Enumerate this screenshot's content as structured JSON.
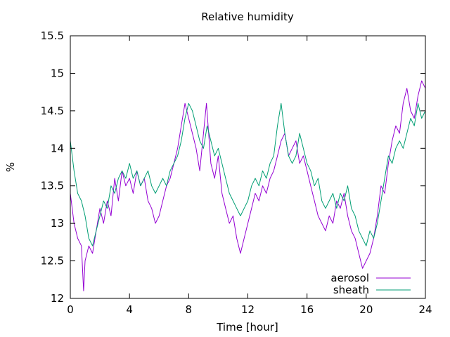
{
  "chart_data": {
    "type": "line",
    "title": "Relative humidity",
    "xlabel": "Time [hour]",
    "ylabel": "%",
    "xlim": [
      0,
      24
    ],
    "ylim": [
      12,
      15.5
    ],
    "xticks": [
      0,
      4,
      8,
      12,
      16,
      20,
      24
    ],
    "yticks": [
      12,
      12.5,
      13,
      13.5,
      14,
      14.5,
      15,
      15.5
    ],
    "grid": false,
    "legend_position": "bottom-right",
    "series": [
      {
        "name": "aerosol",
        "color": "#9400d3",
        "x": [
          0,
          0.25,
          0.5,
          0.75,
          0.9,
          1.0,
          1.25,
          1.5,
          1.75,
          2.0,
          2.25,
          2.5,
          2.75,
          3.0,
          3.25,
          3.5,
          3.75,
          4.0,
          4.25,
          4.5,
          4.75,
          5.0,
          5.25,
          5.5,
          5.75,
          6.0,
          6.25,
          6.5,
          6.75,
          7.0,
          7.25,
          7.5,
          7.75,
          8.0,
          8.25,
          8.5,
          8.75,
          9.0,
          9.2,
          9.5,
          9.75,
          10.0,
          10.25,
          10.5,
          10.75,
          11.0,
          11.25,
          11.5,
          11.75,
          12.0,
          12.25,
          12.5,
          12.75,
          13.0,
          13.25,
          13.5,
          13.75,
          14.0,
          14.25,
          14.5,
          14.75,
          15.0,
          15.25,
          15.5,
          15.75,
          16.0,
          16.25,
          16.5,
          16.75,
          17.0,
          17.25,
          17.5,
          17.75,
          18.0,
          18.25,
          18.5,
          18.75,
          19.0,
          19.25,
          19.5,
          19.75,
          20.0,
          20.25,
          20.5,
          20.75,
          21.0,
          21.25,
          21.5,
          21.75,
          22.0,
          22.25,
          22.5,
          22.75,
          23.0,
          23.25,
          23.5,
          23.75,
          24.0
        ],
        "y": [
          13.4,
          13.0,
          12.8,
          12.7,
          12.1,
          12.5,
          12.7,
          12.6,
          12.9,
          13.2,
          13.0,
          13.3,
          13.1,
          13.6,
          13.3,
          13.7,
          13.5,
          13.6,
          13.4,
          13.7,
          13.5,
          13.6,
          13.3,
          13.2,
          13.0,
          13.1,
          13.3,
          13.5,
          13.6,
          13.8,
          14.0,
          14.3,
          14.6,
          14.4,
          14.2,
          14.0,
          13.7,
          14.2,
          14.6,
          13.8,
          13.6,
          13.9,
          13.4,
          13.2,
          13.0,
          13.1,
          12.8,
          12.6,
          12.8,
          13.0,
          13.2,
          13.4,
          13.3,
          13.5,
          13.4,
          13.6,
          13.7,
          13.9,
          14.1,
          14.2,
          13.9,
          14.0,
          14.1,
          13.8,
          13.9,
          13.7,
          13.5,
          13.3,
          13.1,
          13.0,
          12.9,
          13.1,
          13.0,
          13.3,
          13.2,
          13.4,
          13.1,
          12.9,
          12.8,
          12.6,
          12.4,
          12.5,
          12.6,
          12.8,
          13.1,
          13.5,
          13.4,
          13.8,
          14.1,
          14.3,
          14.2,
          14.6,
          14.8,
          14.5,
          14.4,
          14.7,
          14.9,
          14.8
        ]
      },
      {
        "name": "sheath",
        "color": "#009e73",
        "x": [
          0,
          0.25,
          0.5,
          0.75,
          1.0,
          1.25,
          1.5,
          1.75,
          2.0,
          2.25,
          2.5,
          2.75,
          3.0,
          3.25,
          3.5,
          3.75,
          4.0,
          4.25,
          4.5,
          4.75,
          5.0,
          5.25,
          5.5,
          5.75,
          6.0,
          6.25,
          6.5,
          6.75,
          7.0,
          7.25,
          7.5,
          7.75,
          8.0,
          8.25,
          8.5,
          8.75,
          9.0,
          9.25,
          9.5,
          9.75,
          10.0,
          10.25,
          10.5,
          10.75,
          11.0,
          11.25,
          11.5,
          11.75,
          12.0,
          12.25,
          12.5,
          12.75,
          13.0,
          13.25,
          13.5,
          13.75,
          14.0,
          14.25,
          14.5,
          14.75,
          15.0,
          15.25,
          15.5,
          15.75,
          16.0,
          16.25,
          16.5,
          16.75,
          17.0,
          17.25,
          17.5,
          17.75,
          18.0,
          18.25,
          18.5,
          18.75,
          19.0,
          19.25,
          19.5,
          19.75,
          20.0,
          20.25,
          20.5,
          20.75,
          21.0,
          21.25,
          21.5,
          21.75,
          22.0,
          22.25,
          22.5,
          22.75,
          23.0,
          23.25,
          23.5,
          23.75,
          24.0
        ],
        "y": [
          14.1,
          13.7,
          13.4,
          13.3,
          13.1,
          12.8,
          12.7,
          12.9,
          13.1,
          13.3,
          13.2,
          13.5,
          13.4,
          13.6,
          13.7,
          13.6,
          13.8,
          13.6,
          13.7,
          13.5,
          13.6,
          13.7,
          13.5,
          13.4,
          13.5,
          13.6,
          13.5,
          13.7,
          13.8,
          13.9,
          14.1,
          14.4,
          14.6,
          14.5,
          14.3,
          14.1,
          14.0,
          14.3,
          14.1,
          13.9,
          14.0,
          13.8,
          13.6,
          13.4,
          13.3,
          13.2,
          13.1,
          13.2,
          13.3,
          13.5,
          13.6,
          13.5,
          13.7,
          13.6,
          13.8,
          13.9,
          14.3,
          14.6,
          14.2,
          13.9,
          13.8,
          13.9,
          14.2,
          14.0,
          13.8,
          13.7,
          13.5,
          13.6,
          13.3,
          13.2,
          13.3,
          13.4,
          13.2,
          13.4,
          13.3,
          13.5,
          13.2,
          13.1,
          12.9,
          12.8,
          12.7,
          12.9,
          12.8,
          13.0,
          13.3,
          13.6,
          13.9,
          13.8,
          14.0,
          14.1,
          14.0,
          14.2,
          14.4,
          14.3,
          14.6,
          14.4,
          14.5
        ]
      }
    ]
  }
}
